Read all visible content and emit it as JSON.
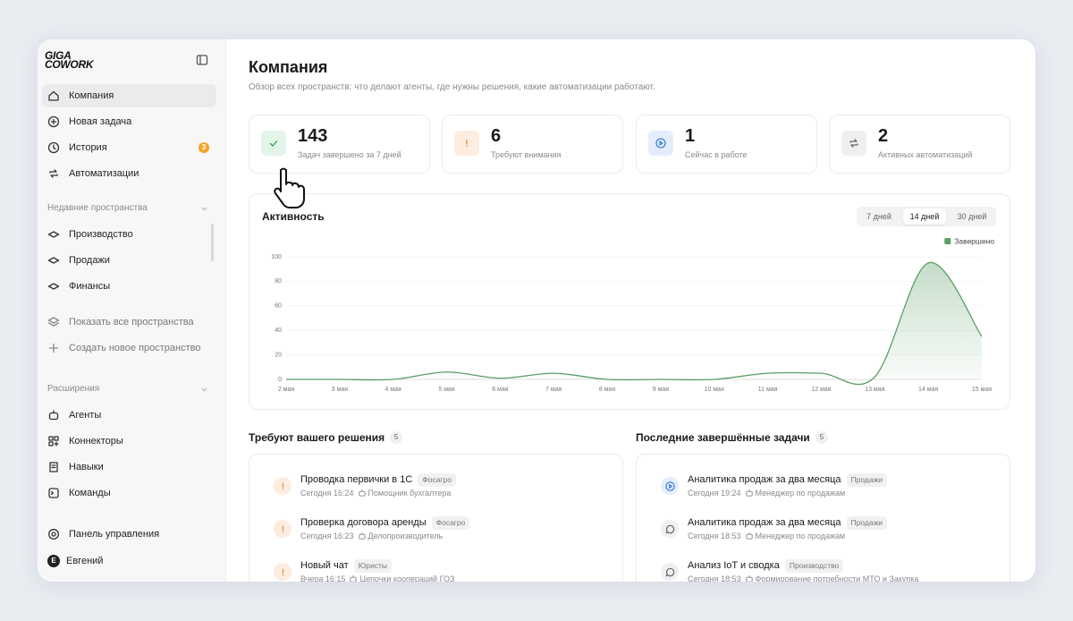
{
  "sidebar": {
    "brand_line1": "GIGA",
    "brand_line2": "COWORK",
    "nav": [
      {
        "label": "Компания",
        "active": true
      },
      {
        "label": "Новая задача",
        "active": false
      },
      {
        "label": "История",
        "active": false
      },
      {
        "label": "Автоматизации",
        "active": false
      }
    ],
    "history_badge": "3",
    "recent_title": "Недавние пространства",
    "recent": [
      "Производство",
      "Продажи",
      "Финансы"
    ],
    "show_all": "Показать все пространства",
    "create": "Создать новое пространство",
    "extensions_title": "Расширения",
    "extensions": [
      "Агенты",
      "Коннекторы",
      "Навыки",
      "Команды"
    ],
    "control_panel": "Панель управления",
    "user": {
      "initial": "Е",
      "name": "Евгений"
    }
  },
  "header": {
    "title": "Компания",
    "subtitle": "Обзор всех пространств: что делают агенты, где нужны решения, какие автоматизации работают."
  },
  "stats": [
    {
      "value": "143",
      "label": "Задач завершено за 7 дней"
    },
    {
      "value": "6",
      "label": "Требуют внимания"
    },
    {
      "value": "1",
      "label": "Сейчас в работе"
    },
    {
      "value": "2",
      "label": "Активных автоматизаций"
    }
  ],
  "activity": {
    "title": "Активность",
    "ranges": [
      "7 дней",
      "14 дней",
      "30 дней"
    ],
    "selected_range": 1,
    "chart": {
      "type": "line",
      "legend": "Завершено",
      "legend_position": "top-right",
      "color": "#5a9e66",
      "grid": true,
      "categories": [
        "2 мая",
        "3 мая",
        "4 мая",
        "5 мая",
        "6 мая",
        "7 мая",
        "8 мая",
        "9 мая",
        "10 мая",
        "11 мая",
        "12 мая",
        "13 мая",
        "14 мая",
        "15 мая"
      ],
      "values": [
        0,
        0,
        0,
        6,
        1,
        5,
        0,
        0,
        0,
        5,
        5,
        2,
        95,
        35
      ],
      "ylim": [
        0,
        100
      ],
      "yticks": [
        0,
        20,
        40,
        60,
        80,
        100
      ]
    }
  },
  "decisions": {
    "title": "Требуют вашего решения",
    "count": "5",
    "items": [
      {
        "title": "Проводка первички в 1С",
        "tag": "Фосагро",
        "time": "Сегодня 16:24",
        "agent": "Помощник бухгалтера"
      },
      {
        "title": "Проверка договора аренды",
        "tag": "Фосагро",
        "time": "Сегодня 16:23",
        "agent": "Делопроизводитель"
      },
      {
        "title": "Новый чат",
        "tag": "Юристы",
        "time": "Вчера 16:15",
        "agent": "Цепочки коопераций ГОЗ"
      }
    ]
  },
  "completed": {
    "title": "Последние завершённые задачи",
    "count": "5",
    "items": [
      {
        "title": "Аналитика продаж за два месяца",
        "tag": "Продажи",
        "time": "Сегодня 19:24",
        "agent": "Менеджер по продажам"
      },
      {
        "title": "Аналитика продаж за два месяца",
        "tag": "Продажи",
        "time": "Сегодня 18:53",
        "agent": "Менеджер по продажам"
      },
      {
        "title": "Анализ IoT и сводка",
        "tag": "Производство",
        "time": "Сегодня 18:53",
        "agent": "Формирование потребности МТО и Закупка"
      }
    ]
  }
}
